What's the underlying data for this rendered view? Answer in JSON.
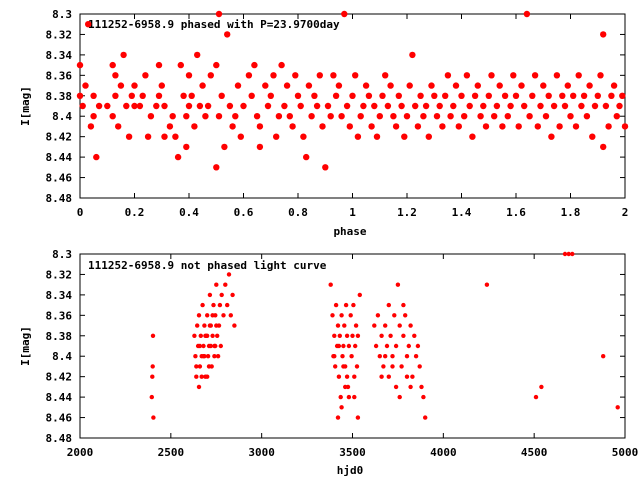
{
  "chart_data": [
    {
      "type": "scatter",
      "title": "111252-6958.9 phased with P=23.9700day",
      "xlabel": "phase",
      "ylabel": "I[mag]",
      "xlim": [
        0,
        2
      ],
      "ylim": [
        8.48,
        8.3
      ],
      "y_inverted": true,
      "xticks": [
        0,
        0.2,
        0.4,
        0.6,
        0.8,
        1,
        1.2,
        1.4,
        1.6,
        1.8,
        2
      ],
      "yticks": [
        8.3,
        8.32,
        8.34,
        8.36,
        8.38,
        8.4,
        8.42,
        8.44,
        8.46,
        8.48
      ],
      "marker_color": "#ff0000",
      "grid": false,
      "points": [
        [
          0.0,
          8.35
        ],
        [
          0.0,
          8.38
        ],
        [
          0.01,
          8.39
        ],
        [
          0.02,
          8.37
        ],
        [
          0.03,
          8.31
        ],
        [
          0.04,
          8.41
        ],
        [
          0.05,
          8.38
        ],
        [
          0.05,
          8.4
        ],
        [
          0.06,
          8.44
        ],
        [
          0.07,
          8.39
        ],
        [
          0.1,
          8.39
        ],
        [
          0.12,
          8.35
        ],
        [
          0.12,
          8.4
        ],
        [
          0.13,
          8.38
        ],
        [
          0.13,
          8.36
        ],
        [
          0.14,
          8.41
        ],
        [
          0.15,
          8.37
        ],
        [
          0.16,
          8.34
        ],
        [
          0.17,
          8.39
        ],
        [
          0.18,
          8.42
        ],
        [
          0.19,
          8.38
        ],
        [
          0.2,
          8.39
        ],
        [
          0.2,
          8.37
        ],
        [
          0.22,
          8.39
        ],
        [
          0.23,
          8.38
        ],
        [
          0.24,
          8.36
        ],
        [
          0.25,
          8.42
        ],
        [
          0.26,
          8.4
        ],
        [
          0.28,
          8.39
        ],
        [
          0.29,
          8.35
        ],
        [
          0.29,
          8.38
        ],
        [
          0.3,
          8.37
        ],
        [
          0.31,
          8.39
        ],
        [
          0.31,
          8.42
        ],
        [
          0.33,
          8.41
        ],
        [
          0.34,
          8.4
        ],
        [
          0.35,
          8.42
        ],
        [
          0.36,
          8.44
        ],
        [
          0.37,
          8.35
        ],
        [
          0.38,
          8.38
        ],
        [
          0.39,
          8.4
        ],
        [
          0.39,
          8.43
        ],
        [
          0.4,
          8.39
        ],
        [
          0.4,
          8.36
        ],
        [
          0.41,
          8.38
        ],
        [
          0.42,
          8.41
        ],
        [
          0.43,
          8.34
        ],
        [
          0.44,
          8.39
        ],
        [
          0.45,
          8.37
        ],
        [
          0.46,
          8.4
        ],
        [
          0.47,
          8.39
        ],
        [
          0.48,
          8.36
        ],
        [
          0.5,
          8.35
        ],
        [
          0.5,
          8.45
        ],
        [
          0.51,
          8.4
        ],
        [
          0.51,
          8.3
        ],
        [
          0.52,
          8.38
        ],
        [
          0.53,
          8.43
        ],
        [
          0.54,
          8.32
        ],
        [
          0.55,
          8.39
        ],
        [
          0.56,
          8.41
        ],
        [
          0.57,
          8.4
        ],
        [
          0.58,
          8.37
        ],
        [
          0.59,
          8.42
        ],
        [
          0.6,
          8.39
        ],
        [
          0.62,
          8.36
        ],
        [
          0.63,
          8.38
        ],
        [
          0.64,
          8.35
        ],
        [
          0.65,
          8.4
        ],
        [
          0.66,
          8.41
        ],
        [
          0.66,
          8.43
        ],
        [
          0.68,
          8.37
        ],
        [
          0.69,
          8.39
        ],
        [
          0.7,
          8.38
        ],
        [
          0.71,
          8.36
        ],
        [
          0.72,
          8.42
        ],
        [
          0.73,
          8.4
        ],
        [
          0.74,
          8.35
        ],
        [
          0.75,
          8.39
        ],
        [
          0.76,
          8.37
        ],
        [
          0.77,
          8.4
        ],
        [
          0.78,
          8.41
        ],
        [
          0.79,
          8.36
        ],
        [
          0.8,
          8.38
        ],
        [
          0.81,
          8.39
        ],
        [
          0.82,
          8.42
        ],
        [
          0.83,
          8.44
        ],
        [
          0.84,
          8.37
        ],
        [
          0.85,
          8.4
        ],
        [
          0.86,
          8.38
        ],
        [
          0.87,
          8.39
        ],
        [
          0.88,
          8.36
        ],
        [
          0.89,
          8.41
        ],
        [
          0.9,
          8.45
        ],
        [
          0.91,
          8.39
        ],
        [
          0.92,
          8.4
        ],
        [
          0.93,
          8.36
        ],
        [
          0.94,
          8.38
        ],
        [
          0.95,
          8.37
        ],
        [
          0.96,
          8.4
        ],
        [
          0.97,
          8.3
        ],
        [
          0.98,
          8.39
        ],
        [
          0.99,
          8.41
        ],
        [
          1.0,
          8.38
        ],
        [
          1.01,
          8.36
        ],
        [
          1.02,
          8.42
        ],
        [
          1.03,
          8.4
        ],
        [
          1.04,
          8.39
        ],
        [
          1.05,
          8.37
        ],
        [
          1.06,
          8.38
        ],
        [
          1.07,
          8.41
        ],
        [
          1.08,
          8.39
        ],
        [
          1.09,
          8.42
        ],
        [
          1.1,
          8.4
        ],
        [
          1.11,
          8.38
        ],
        [
          1.12,
          8.36
        ],
        [
          1.13,
          8.39
        ],
        [
          1.14,
          8.37
        ],
        [
          1.15,
          8.4
        ],
        [
          1.16,
          8.41
        ],
        [
          1.17,
          8.38
        ],
        [
          1.18,
          8.39
        ],
        [
          1.19,
          8.42
        ],
        [
          1.2,
          8.4
        ],
        [
          1.21,
          8.37
        ],
        [
          1.22,
          8.34
        ],
        [
          1.23,
          8.39
        ],
        [
          1.24,
          8.41
        ],
        [
          1.25,
          8.38
        ],
        [
          1.26,
          8.4
        ],
        [
          1.27,
          8.39
        ],
        [
          1.28,
          8.42
        ],
        [
          1.29,
          8.37
        ],
        [
          1.3,
          8.38
        ],
        [
          1.31,
          8.4
        ],
        [
          1.32,
          8.39
        ],
        [
          1.33,
          8.41
        ],
        [
          1.34,
          8.38
        ],
        [
          1.35,
          8.36
        ],
        [
          1.36,
          8.4
        ],
        [
          1.37,
          8.39
        ],
        [
          1.38,
          8.37
        ],
        [
          1.39,
          8.41
        ],
        [
          1.4,
          8.38
        ],
        [
          1.41,
          8.4
        ],
        [
          1.42,
          8.36
        ],
        [
          1.43,
          8.39
        ],
        [
          1.44,
          8.42
        ],
        [
          1.45,
          8.38
        ],
        [
          1.46,
          8.37
        ],
        [
          1.47,
          8.4
        ],
        [
          1.48,
          8.39
        ],
        [
          1.49,
          8.41
        ],
        [
          1.5,
          8.38
        ],
        [
          1.51,
          8.36
        ],
        [
          1.52,
          8.4
        ],
        [
          1.53,
          8.39
        ],
        [
          1.54,
          8.37
        ],
        [
          1.55,
          8.41
        ],
        [
          1.56,
          8.38
        ],
        [
          1.57,
          8.4
        ],
        [
          1.58,
          8.39
        ],
        [
          1.59,
          8.36
        ],
        [
          1.6,
          8.38
        ],
        [
          1.61,
          8.41
        ],
        [
          1.62,
          8.37
        ],
        [
          1.63,
          8.39
        ],
        [
          1.64,
          8.3
        ],
        [
          1.65,
          8.4
        ],
        [
          1.66,
          8.38
        ],
        [
          1.67,
          8.36
        ],
        [
          1.68,
          8.41
        ],
        [
          1.69,
          8.39
        ],
        [
          1.7,
          8.37
        ],
        [
          1.71,
          8.4
        ],
        [
          1.72,
          8.38
        ],
        [
          1.73,
          8.42
        ],
        [
          1.74,
          8.39
        ],
        [
          1.75,
          8.36
        ],
        [
          1.76,
          8.41
        ],
        [
          1.77,
          8.38
        ],
        [
          1.78,
          8.39
        ],
        [
          1.79,
          8.37
        ],
        [
          1.8,
          8.4
        ],
        [
          1.81,
          8.38
        ],
        [
          1.82,
          8.41
        ],
        [
          1.83,
          8.36
        ],
        [
          1.84,
          8.39
        ],
        [
          1.85,
          8.38
        ],
        [
          1.86,
          8.4
        ],
        [
          1.87,
          8.37
        ],
        [
          1.88,
          8.42
        ],
        [
          1.89,
          8.39
        ],
        [
          1.9,
          8.38
        ],
        [
          1.91,
          8.36
        ],
        [
          1.92,
          8.32
        ],
        [
          1.92,
          8.43
        ],
        [
          1.93,
          8.39
        ],
        [
          1.94,
          8.41
        ],
        [
          1.95,
          8.38
        ],
        [
          1.96,
          8.37
        ],
        [
          1.97,
          8.4
        ],
        [
          1.98,
          8.39
        ],
        [
          1.99,
          8.38
        ],
        [
          2.0,
          8.41
        ]
      ]
    },
    {
      "type": "scatter",
      "title": "111252-6958.9 not phased light curve",
      "xlabel": "hjd0",
      "ylabel": "I[mag]",
      "xlim": [
        2000,
        5000
      ],
      "ylim": [
        8.48,
        8.3
      ],
      "y_inverted": true,
      "xticks": [
        2000,
        2500,
        3000,
        3500,
        4000,
        4500,
        5000
      ],
      "yticks": [
        8.3,
        8.32,
        8.34,
        8.36,
        8.38,
        8.4,
        8.42,
        8.44,
        8.46,
        8.48
      ],
      "marker_color": "#ff0000",
      "grid": false,
      "points": [
        [
          2395,
          8.44
        ],
        [
          2398,
          8.42
        ],
        [
          2400,
          8.41
        ],
        [
          2402,
          8.38
        ],
        [
          2404,
          8.46
        ],
        [
          2630,
          8.38
        ],
        [
          2635,
          8.4
        ],
        [
          2640,
          8.42
        ],
        [
          2645,
          8.37
        ],
        [
          2650,
          8.39
        ],
        [
          2655,
          8.36
        ],
        [
          2660,
          8.41
        ],
        [
          2665,
          8.38
        ],
        [
          2670,
          8.4
        ],
        [
          2675,
          8.35
        ],
        [
          2680,
          8.39
        ],
        [
          2685,
          8.37
        ],
        [
          2690,
          8.42
        ],
        [
          2695,
          8.38
        ],
        [
          2700,
          8.36
        ],
        [
          2705,
          8.4
        ],
        [
          2710,
          8.39
        ],
        [
          2715,
          8.34
        ],
        [
          2720,
          8.37
        ],
        [
          2725,
          8.41
        ],
        [
          2730,
          8.38
        ],
        [
          2735,
          8.35
        ],
        [
          2740,
          8.39
        ],
        [
          2745,
          8.36
        ],
        [
          2750,
          8.33
        ],
        [
          2755,
          8.38
        ],
        [
          2760,
          8.4
        ],
        [
          2765,
          8.37
        ],
        [
          2770,
          8.35
        ],
        [
          2775,
          8.39
        ],
        [
          2780,
          8.34
        ],
        [
          2790,
          8.36
        ],
        [
          2800,
          8.33
        ],
        [
          2810,
          8.35
        ],
        [
          2820,
          8.32
        ],
        [
          2830,
          8.36
        ],
        [
          2840,
          8.34
        ],
        [
          2850,
          8.37
        ],
        [
          2640,
          8.41
        ],
        [
          2655,
          8.43
        ],
        [
          2670,
          8.42
        ],
        [
          2685,
          8.4
        ],
        [
          2700,
          8.38
        ],
        [
          2715,
          8.37
        ],
        [
          2730,
          8.36
        ],
        [
          2745,
          8.39
        ],
        [
          2660,
          8.39
        ],
        [
          2690,
          8.38
        ],
        [
          2720,
          8.39
        ],
        [
          2750,
          8.37
        ],
        [
          2680,
          8.4
        ],
        [
          2710,
          8.41
        ],
        [
          2740,
          8.4
        ],
        [
          2700,
          8.42
        ],
        [
          3380,
          8.33
        ],
        [
          3390,
          8.36
        ],
        [
          3395,
          8.4
        ],
        [
          3400,
          8.38
        ],
        [
          3405,
          8.41
        ],
        [
          3410,
          8.35
        ],
        [
          3415,
          8.39
        ],
        [
          3420,
          8.37
        ],
        [
          3425,
          8.42
        ],
        [
          3430,
          8.38
        ],
        [
          3435,
          8.44
        ],
        [
          3440,
          8.36
        ],
        [
          3445,
          8.4
        ],
        [
          3450,
          8.39
        ],
        [
          3455,
          8.37
        ],
        [
          3460,
          8.41
        ],
        [
          3465,
          8.35
        ],
        [
          3470,
          8.38
        ],
        [
          3475,
          8.43
        ],
        [
          3480,
          8.39
        ],
        [
          3490,
          8.36
        ],
        [
          3495,
          8.4
        ],
        [
          3500,
          8.38
        ],
        [
          3505,
          8.35
        ],
        [
          3510,
          8.42
        ],
        [
          3515,
          8.39
        ],
        [
          3520,
          8.37
        ],
        [
          3525,
          8.41
        ],
        [
          3530,
          8.38
        ],
        [
          3540,
          8.34
        ],
        [
          3420,
          8.46
        ],
        [
          3440,
          8.45
        ],
        [
          3460,
          8.43
        ],
        [
          3480,
          8.44
        ],
        [
          3510,
          8.44
        ],
        [
          3530,
          8.46
        ],
        [
          3400,
          8.4
        ],
        [
          3425,
          8.39
        ],
        [
          3450,
          8.41
        ],
        [
          3470,
          8.42
        ],
        [
          3620,
          8.37
        ],
        [
          3630,
          8.39
        ],
        [
          3640,
          8.36
        ],
        [
          3650,
          8.4
        ],
        [
          3660,
          8.38
        ],
        [
          3670,
          8.41
        ],
        [
          3680,
          8.37
        ],
        [
          3690,
          8.39
        ],
        [
          3700,
          8.35
        ],
        [
          3710,
          8.38
        ],
        [
          3720,
          8.4
        ],
        [
          3730,
          8.36
        ],
        [
          3740,
          8.39
        ],
        [
          3750,
          8.33
        ],
        [
          3760,
          8.37
        ],
        [
          3770,
          8.41
        ],
        [
          3780,
          8.38
        ],
        [
          3790,
          8.36
        ],
        [
          3800,
          8.4
        ],
        [
          3810,
          8.39
        ],
        [
          3820,
          8.37
        ],
        [
          3830,
          8.42
        ],
        [
          3840,
          8.38
        ],
        [
          3850,
          8.4
        ],
        [
          3860,
          8.39
        ],
        [
          3870,
          8.41
        ],
        [
          3880,
          8.43
        ],
        [
          3890,
          8.44
        ],
        [
          3900,
          8.46
        ],
        [
          3780,
          8.35
        ],
        [
          3700,
          8.42
        ],
        [
          3720,
          8.41
        ],
        [
          3740,
          8.43
        ],
        [
          3760,
          8.44
        ],
        [
          3800,
          8.42
        ],
        [
          3820,
          8.43
        ],
        [
          3680,
          8.4
        ],
        [
          3660,
          8.42
        ],
        [
          4240,
          8.33
        ],
        [
          4510,
          8.44
        ],
        [
          4540,
          8.43
        ],
        [
          4670,
          8.3
        ],
        [
          4690,
          8.3
        ],
        [
          4710,
          8.3
        ],
        [
          4880,
          8.4
        ],
        [
          4960,
          8.45
        ]
      ]
    }
  ]
}
